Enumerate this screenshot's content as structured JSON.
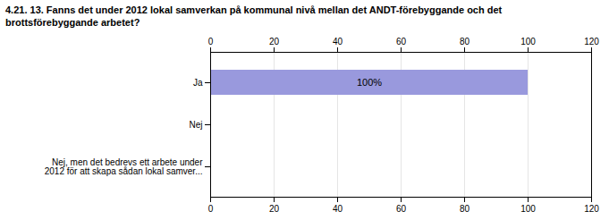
{
  "chart_data": {
    "type": "bar",
    "orientation": "horizontal",
    "title": "4.21. 13. Fanns det under 2012 lokal samverkan på kommunal nivå mellan det ANDT-förebyggande och det\nbrottsförebyggande arbetet?",
    "categories": [
      "Ja",
      "Nej",
      "Nej, men det bedrevs ett arbete under\n2012 för att skapa sådan lokal samver..."
    ],
    "values": [
      100,
      0,
      0
    ],
    "value_labels": [
      "100%",
      null,
      null
    ],
    "data_labels": true,
    "color": "#9999dd",
    "xlim": [
      0,
      120
    ],
    "xticks": [
      0,
      20,
      40,
      60,
      80,
      100,
      120
    ],
    "grid": true
  }
}
